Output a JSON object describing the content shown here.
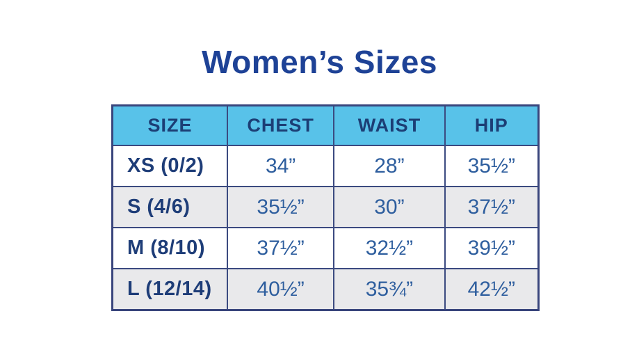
{
  "title": "Women’s Sizes",
  "table": {
    "columns": [
      "SIZE",
      "CHEST",
      "WAIST",
      "HIP"
    ],
    "rows": [
      [
        "XS (0/2)",
        "34”",
        "28”",
        "35½”"
      ],
      [
        "S (4/6)",
        "35½”",
        "30”",
        "37½”"
      ],
      [
        "M (8/10)",
        "37½”",
        "32½”",
        "39½”"
      ],
      [
        "L (12/14)",
        "40½”",
        "35¾”",
        "42½”"
      ]
    ]
  },
  "chart_data": {
    "type": "table",
    "title": "Women’s Sizes",
    "columns": [
      "SIZE",
      "CHEST",
      "WAIST",
      "HIP"
    ],
    "rows": [
      [
        "XS (0/2)",
        "34”",
        "28”",
        "35½”"
      ],
      [
        "S (4/6)",
        "35½”",
        "30”",
        "37½”"
      ],
      [
        "M (8/10)",
        "37½”",
        "32½”",
        "39½”"
      ],
      [
        "L (12/14)",
        "40½”",
        "35¾”",
        "42½”"
      ]
    ]
  },
  "colors": {
    "page_bg": "#ffffff",
    "title_text": "#1e4296",
    "header_bg": "#58c2e9",
    "header_text": "#1c3e75",
    "size_text": "#1e3d78",
    "value_text": "#2e5e9e",
    "alt_row_bg": "#e9e9eb",
    "grid_line": "#3b4a80",
    "outer_border": "#39457c"
  }
}
